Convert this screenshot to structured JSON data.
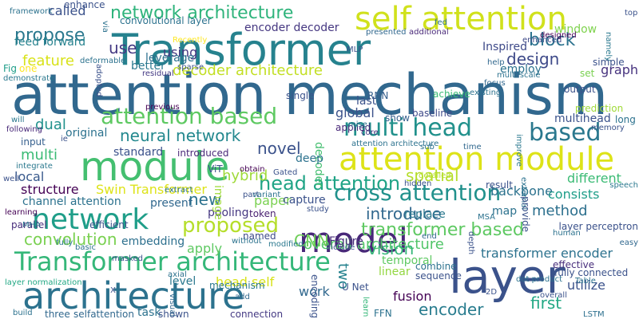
{
  "words": [
    {
      "text": "attention mechanism",
      "color": "#31688e"
    },
    {
      "text": "Transformer",
      "color": "#26828e"
    },
    {
      "text": "module",
      "color": "#44bf70"
    },
    {
      "text": "attention module",
      "color": "#dde318"
    },
    {
      "text": "self attention",
      "color": "#d0e11c"
    },
    {
      "text": "layer",
      "color": "#3b528b"
    },
    {
      "text": "architecture",
      "color": "#2c728e"
    },
    {
      "text": "Transformer architecture",
      "color": "#35b779"
    },
    {
      "text": "model",
      "color": "#482878"
    },
    {
      "text": "network",
      "color": "#1f9e89"
    },
    {
      "text": "multi head",
      "color": "#21918c"
    },
    {
      "text": "attention based",
      "color": "#5ec962"
    },
    {
      "text": "head attention",
      "color": "#20a486"
    },
    {
      "text": "based",
      "color": "#2a788e"
    },
    {
      "text": "proposed",
      "color": "#b5de2b"
    },
    {
      "text": "cross attention",
      "color": "#21918c"
    },
    {
      "text": "network architecture",
      "color": "#2fb47c"
    },
    {
      "text": "propose",
      "color": "#2a788e"
    },
    {
      "text": "transformer based",
      "color": "#5ec962"
    },
    {
      "text": "encoder",
      "color": "#287c8e"
    },
    {
      "text": "neural network",
      "color": "#23888e"
    },
    {
      "text": "convolution",
      "color": "#7ad151"
    },
    {
      "text": "block",
      "color": "#2c728e"
    },
    {
      "text": "design",
      "color": "#3e4a89"
    },
    {
      "text": "feature",
      "color": "#d8e219"
    },
    {
      "text": "decoder architecture",
      "color": "#c2df23"
    },
    {
      "text": "overall architecture",
      "color": "#52c569"
    },
    {
      "text": "introduce",
      "color": "#31688e"
    },
    {
      "text": "use",
      "color": "#443983"
    },
    {
      "text": "multi",
      "color": "#3bbb75"
    },
    {
      "text": "novel",
      "color": "#3b528b"
    },
    {
      "text": "first",
      "color": "#22a884"
    },
    {
      "text": "spatial",
      "color": "#b5de2b"
    },
    {
      "text": "new",
      "color": "#2c728e"
    },
    {
      "text": "vision",
      "color": "#35b779"
    },
    {
      "text": "transformer encoder",
      "color": "#2c728e"
    },
    {
      "text": "method",
      "color": "#2d708e"
    },
    {
      "text": "graph",
      "color": "#46327e"
    },
    {
      "text": "structure",
      "color": "#440154"
    },
    {
      "text": "CNN",
      "color": "#6ece58"
    },
    {
      "text": "fusion",
      "color": "#440154"
    },
    {
      "text": "dual",
      "color": "#21918c"
    },
    {
      "text": "local",
      "color": "#38598c"
    },
    {
      "text": "hybrid",
      "color": "#9fda3a"
    },
    {
      "text": "consists",
      "color": "#1f9e89"
    },
    {
      "text": "paper",
      "color": "#7ad151"
    },
    {
      "text": "using",
      "color": "#453781"
    },
    {
      "text": "linear",
      "color": "#93d741"
    },
    {
      "text": "utilize",
      "color": "#3b528b"
    },
    {
      "text": "global",
      "color": "#3b528b"
    },
    {
      "text": "called",
      "color": "#3b528b"
    },
    {
      "text": "window",
      "color": "#7fd34e"
    },
    {
      "text": "encoder decoder",
      "color": "#453781"
    },
    {
      "text": "multihead",
      "color": "#3b528b"
    },
    {
      "text": "different",
      "color": "#3bbb75"
    },
    {
      "text": "backbone",
      "color": "#2c728e"
    },
    {
      "text": "replace",
      "color": "#2a788e"
    },
    {
      "text": "channel attention",
      "color": "#2c728e"
    },
    {
      "text": "Swin Transformer",
      "color": "#dde318"
    },
    {
      "text": "apply",
      "color": "#5ec962"
    },
    {
      "text": "work",
      "color": "#31688e"
    },
    {
      "text": "head self",
      "color": "#d8e219"
    },
    {
      "text": "embedding",
      "color": "#2d708e"
    },
    {
      "text": "pooling",
      "color": "#453781"
    },
    {
      "text": "convolutional layer",
      "color": "#2c728e"
    },
    {
      "text": "temporal",
      "color": "#5ec962"
    },
    {
      "text": "two",
      "color": "#26828e"
    },
    {
      "text": "map",
      "color": "#2c728e"
    },
    {
      "text": "output",
      "color": "#3b528b"
    },
    {
      "text": "image",
      "color": "#9fda3a"
    },
    {
      "text": "LSTM",
      "color": "#2d708e"
    },
    {
      "text": "leverage",
      "color": "#2d708e"
    },
    {
      "text": "level",
      "color": "#2a788e"
    },
    {
      "text": "named",
      "color": "#3e4a89"
    },
    {
      "text": "Figure",
      "color": "#472d7b"
    },
    {
      "text": "input",
      "color": "#355f8d"
    },
    {
      "text": "token",
      "color": "#481f70"
    },
    {
      "text": "decoder",
      "color": "#44bf70"
    },
    {
      "text": "capture",
      "color": "#3b528b"
    },
    {
      "text": "original",
      "color": "#2c728e"
    },
    {
      "text": "enhance",
      "color": "#3b528b"
    },
    {
      "text": "framework",
      "color": "#2c728e"
    },
    {
      "text": "feed forward",
      "color": "#26828e"
    },
    {
      "text": "better",
      "color": "#2a788e"
    },
    {
      "text": "standard",
      "color": "#3b528b"
    },
    {
      "text": "introduced",
      "color": "#482878"
    },
    {
      "text": "present",
      "color": "#31688e"
    },
    {
      "text": "ViT",
      "color": "#3b528b"
    },
    {
      "text": "connection",
      "color": "#443983"
    },
    {
      "text": "shown",
      "color": "#3b528b"
    },
    {
      "text": "selfattention",
      "color": "#31688e"
    },
    {
      "text": "task",
      "color": "#2c728e"
    },
    {
      "text": "parallel",
      "color": "#472d7b"
    },
    {
      "text": "three",
      "color": "#31688e"
    },
    {
      "text": "build",
      "color": "#2c728e"
    },
    {
      "text": "layer normalization",
      "color": "#22a884"
    },
    {
      "text": "basic",
      "color": "#2c728e"
    },
    {
      "text": "efficient",
      "color": "#3b528b"
    },
    {
      "text": "learning",
      "color": "#440154"
    },
    {
      "text": "integrate",
      "color": "#2a788e"
    },
    {
      "text": "U Net",
      "color": "#3b528b"
    },
    {
      "text": "fully connected",
      "color": "#3b528b"
    },
    {
      "text": "effective",
      "color": "#472d7b"
    },
    {
      "text": "last",
      "color": "#3b528b"
    },
    {
      "text": "applied",
      "color": "#482878"
    },
    {
      "text": "show",
      "color": "#355f8d"
    },
    {
      "text": "baseline",
      "color": "#3e4a89"
    },
    {
      "text": "result",
      "color": "#3b528b"
    },
    {
      "text": "Fig",
      "color": "#1f9e89"
    },
    {
      "text": "one",
      "color": "#fde725"
    },
    {
      "text": "demonstrate",
      "color": "#2a788e"
    },
    {
      "text": "residual",
      "color": "#443983"
    },
    {
      "text": "sparse",
      "color": "#3b528b"
    },
    {
      "text": "Recently",
      "color": "#fde725"
    },
    {
      "text": "Inspired",
      "color": "#3e4a89"
    },
    {
      "text": "employ",
      "color": "#2c728e"
    },
    {
      "text": "multi scale",
      "color": "#2c728e"
    },
    {
      "text": "additional",
      "color": "#482878"
    },
    {
      "text": "presented",
      "color": "#31688e"
    },
    {
      "text": "MLP",
      "color": "#3b528b"
    },
    {
      "text": "enhanced",
      "color": "#3e4a89"
    },
    {
      "text": "designed",
      "color": "#440154"
    },
    {
      "text": "top",
      "color": "#3b528b"
    },
    {
      "text": "help",
      "color": "#31688e"
    },
    {
      "text": "simple",
      "color": "#3b528b"
    },
    {
      "text": "set",
      "color": "#7ad151"
    },
    {
      "text": "namely",
      "color": "#2a788e"
    },
    {
      "text": "focus",
      "color": "#31688e"
    },
    {
      "text": "achieve",
      "color": "#3bbb75"
    },
    {
      "text": "RNN",
      "color": "#355f8d"
    },
    {
      "text": "existing",
      "color": "#2c728e"
    },
    {
      "text": "previous",
      "color": "#440154"
    },
    {
      "text": "single",
      "color": "#3b528b"
    },
    {
      "text": "will",
      "color": "#2a788e"
    },
    {
      "text": "following",
      "color": "#482878"
    },
    {
      "text": "ie",
      "color": "#3b528b"
    },
    {
      "text": "mise",
      "color": "#2c728e"
    },
    {
      "text": "core",
      "color": "#453781"
    },
    {
      "text": "attention architecture",
      "color": "#2c728e"
    },
    {
      "text": "sub",
      "color": "#2c728e"
    },
    {
      "text": "time",
      "color": "#31688e"
    },
    {
      "text": "improve",
      "color": "#2a788e"
    },
    {
      "text": "prediction",
      "color": "#a0da39"
    },
    {
      "text": "memory",
      "color": "#3b528b"
    },
    {
      "text": "long",
      "color": "#2c728e"
    },
    {
      "text": "deep",
      "color": "#2c728e"
    },
    {
      "text": "obtain",
      "color": "#440154"
    },
    {
      "text": "Gated",
      "color": "#3b528b"
    },
    {
      "text": "part",
      "color": "#3b528b"
    },
    {
      "text": "variant",
      "color": "#2c728e"
    },
    {
      "text": "detailed",
      "color": "#b5de2b"
    },
    {
      "text": "hidden",
      "color": "#3b528b"
    },
    {
      "text": "external",
      "color": "#2c728e"
    },
    {
      "text": "provide",
      "color": "#3b528b"
    },
    {
      "text": "speech",
      "color": "#2a788e"
    },
    {
      "text": "extract",
      "color": "#2c728e"
    },
    {
      "text": "MHA",
      "color": "#2c728e"
    },
    {
      "text": "fully",
      "color": "#2a788e"
    },
    {
      "text": "masked",
      "color": "#3b528b"
    },
    {
      "text": "axial",
      "color": "#2c728e"
    },
    {
      "text": "visual",
      "color": "#31688e"
    },
    {
      "text": "study",
      "color": "#3b528b"
    },
    {
      "text": "MSA",
      "color": "#2c728e"
    },
    {
      "text": "layer perceptron",
      "color": "#3b528b"
    },
    {
      "text": "human",
      "color": "#2c728e"
    },
    {
      "text": "easy",
      "color": "#31688e"
    },
    {
      "text": "modified",
      "color": "#2a788e"
    },
    {
      "text": "without",
      "color": "#2c728e"
    },
    {
      "text": "end",
      "color": "#31688e"
    },
    {
      "text": "include",
      "color": "#3b528b"
    },
    {
      "text": "combine",
      "color": "#2c728e"
    },
    {
      "text": "sequence",
      "color": "#3b528b"
    },
    {
      "text": "dot product",
      "color": "#2c728e"
    },
    {
      "text": "mechanism",
      "color": "#2a788e"
    },
    {
      "text": "encoding",
      "color": "#3b528b"
    },
    {
      "text": "FFN",
      "color": "#2c728e"
    },
    {
      "text": "overall",
      "color": "#3b528b"
    },
    {
      "text": "add",
      "color": "#31688e"
    },
    {
      "text": "X",
      "color": "#3b528b"
    },
    {
      "text": "Table",
      "color": "#2c728e"
    },
    {
      "text": "2D",
      "color": "#3b528b"
    },
    {
      "text": "fed",
      "color": "#2c728e"
    },
    {
      "text": "well",
      "color": "#3b528b"
    },
    {
      "text": "via",
      "color": "#2c728e"
    },
    {
      "text": "adopted",
      "color": "#3b528b"
    },
    {
      "text": "deformable",
      "color": "#2c728e"
    },
    {
      "text": "depth",
      "color": "#3b528b"
    },
    {
      "text": "learn",
      "color": "#35b779"
    }
  ]
}
